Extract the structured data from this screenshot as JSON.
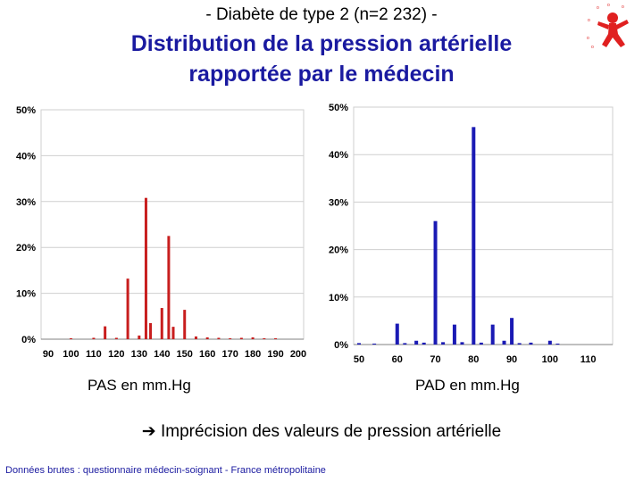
{
  "header": {
    "subtitle": "- Diabète de type 2 (n=2 232) -",
    "title_line1": "Distribution de la pression artérielle",
    "title_line2": "rapportée par le médecin"
  },
  "colors": {
    "title": "#1a1aa0",
    "pas": "#c81e1e",
    "pad": "#1a1ab4",
    "grid": "#cfcfcf"
  },
  "logo": {
    "icon": "figure-logo-icon"
  },
  "chart_data": [
    {
      "type": "bar",
      "xlabel": "PAS en mm.Hg",
      "ylabel": "",
      "x_ticks": [
        90,
        100,
        110,
        120,
        130,
        140,
        150,
        160,
        170,
        180,
        190,
        200
      ],
      "xlim": [
        90,
        200
      ],
      "y_ticks": [
        "0%",
        "10%",
        "20%",
        "30%",
        "40%",
        "50%"
      ],
      "ylim": [
        0,
        50
      ],
      "grid": true,
      "color": "#c81e1e",
      "x": [
        100,
        110,
        115,
        120,
        125,
        130,
        133,
        135,
        140,
        143,
        145,
        150,
        155,
        160,
        165,
        170,
        175,
        180,
        185,
        190
      ],
      "values": [
        0.2,
        0.3,
        2.8,
        0.3,
        13.2,
        0.8,
        30.8,
        3.5,
        6.8,
        22.5,
        2.7,
        6.4,
        0.6,
        0.4,
        0.3,
        0.2,
        0.3,
        0.4,
        0.2,
        0.2
      ]
    },
    {
      "type": "bar",
      "xlabel": "PAD en mm.Hg",
      "ylabel": "",
      "x_ticks": [
        50,
        60,
        70,
        80,
        90,
        100,
        110
      ],
      "xlim": [
        50,
        115
      ],
      "y_ticks": [
        "0%",
        "10%",
        "20%",
        "30%",
        "40%",
        "50%"
      ],
      "ylim": [
        0,
        50
      ],
      "grid": true,
      "color": "#1a1ab4",
      "x": [
        50,
        54,
        60,
        62,
        65,
        67,
        70,
        72,
        75,
        77,
        80,
        82,
        85,
        88,
        90,
        92,
        95,
        100,
        102
      ],
      "values": [
        0.3,
        0.2,
        4.4,
        0.3,
        0.8,
        0.4,
        26.0,
        0.5,
        4.2,
        0.5,
        45.8,
        0.4,
        4.2,
        0.8,
        5.6,
        0.3,
        0.4,
        0.8,
        0.2
      ]
    }
  ],
  "conclusion": "Imprécision des valeurs de pression artérielle",
  "footnote": "Données brutes : questionnaire médecin-soignant - France métropolitaine"
}
